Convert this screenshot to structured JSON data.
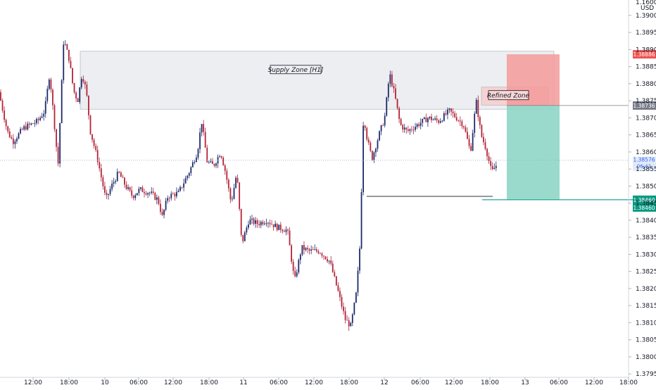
{
  "chart_data": {
    "type": "candlestick",
    "currency": "USD",
    "y_axis_header": "1.16000",
    "x_ticks": [
      "12:00",
      "18:00",
      "10",
      "06:00",
      "12:00",
      "18:00",
      "11",
      "06:00",
      "12:00",
      "18:00",
      "12",
      "06:00",
      "12:00",
      "18:00",
      "13",
      "06:00",
      "12:00",
      "18:00"
    ],
    "y_ticks": [
      "1.39000",
      "1.38950",
      "1.38900",
      "1.38850",
      "1.38800",
      "1.38750",
      "1.38700",
      "1.38650",
      "1.38600",
      "1.38550",
      "1.38500",
      "1.38450",
      "1.38400",
      "1.38350",
      "1.38300",
      "1.38250",
      "1.38200",
      "1.38150",
      "1.38100",
      "1.38050",
      "1.38000",
      "1.37950"
    ],
    "ylim": [
      1.3794,
      1.39045
    ],
    "price_tags": {
      "stop_loss": "1.38886",
      "entry": "1.38736",
      "current_price": "1.38576",
      "countdown": "06:42",
      "target_1": "1.38460",
      "target_2": "1.38460"
    },
    "annotations": {
      "supply_zone": "Supply Zone [H1]",
      "refined_zone": "Refined Zone"
    },
    "colors": {
      "up": "#1d2a6b",
      "down": "#b2233a",
      "supply_fill": "#eceef1",
      "stop_fill": "#f49a9a",
      "target_fill": "#8fd6c7",
      "current_line": "#90a9d8",
      "target_line": "#26a69a",
      "entry_tag": "#787b86",
      "stop_tag": "#ef5350",
      "target_tag": "#089981",
      "current_tag": "#e3eaf7"
    }
  }
}
